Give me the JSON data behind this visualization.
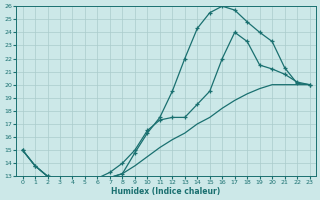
{
  "xlabel": "Humidex (Indice chaleur)",
  "bg_color": "#cce8e8",
  "line_color": "#1a7070",
  "grid_color": "#aacccc",
  "xlim": [
    -0.5,
    23.5
  ],
  "ylim": [
    13,
    26
  ],
  "xticks": [
    0,
    1,
    2,
    3,
    4,
    5,
    6,
    7,
    8,
    9,
    10,
    11,
    12,
    13,
    14,
    15,
    16,
    17,
    18,
    19,
    20,
    21,
    22,
    23
  ],
  "yticks": [
    13,
    14,
    15,
    16,
    17,
    18,
    19,
    20,
    21,
    22,
    23,
    24,
    25,
    26
  ],
  "curve1_x": [
    0,
    1,
    2,
    3,
    4,
    5,
    6,
    7,
    8,
    9,
    10,
    11,
    12,
    13,
    14,
    15,
    16,
    17,
    18,
    19,
    20,
    21,
    22,
    23
  ],
  "curve1_y": [
    15.0,
    13.8,
    13.0,
    12.9,
    12.85,
    12.85,
    12.85,
    12.9,
    13.2,
    14.8,
    16.3,
    17.5,
    19.5,
    22.0,
    24.3,
    25.5,
    26.0,
    25.7,
    24.8,
    24.0,
    23.3,
    21.3,
    20.1,
    20.0
  ],
  "curve2_x": [
    0,
    1,
    2,
    3,
    4,
    5,
    6,
    7,
    8,
    9,
    10,
    11,
    12,
    13,
    14,
    15,
    16,
    17,
    18,
    19,
    20,
    21,
    22,
    23
  ],
  "curve2_y": [
    15.0,
    13.8,
    13.0,
    12.9,
    12.85,
    12.85,
    12.85,
    13.3,
    14.0,
    15.0,
    16.5,
    17.3,
    17.5,
    17.5,
    18.5,
    19.5,
    22.0,
    24.0,
    23.3,
    21.5,
    21.2,
    20.8,
    20.2,
    20.0
  ],
  "curve3_x": [
    0,
    1,
    2,
    3,
    4,
    5,
    6,
    7,
    8,
    9,
    10,
    11,
    12,
    13,
    14,
    15,
    16,
    17,
    18,
    19,
    20,
    21,
    22,
    23
  ],
  "curve3_y": [
    15.0,
    13.8,
    13.0,
    12.9,
    12.85,
    12.85,
    12.85,
    12.9,
    13.2,
    13.8,
    14.5,
    15.2,
    15.8,
    16.3,
    17.0,
    17.5,
    18.2,
    18.8,
    19.3,
    19.7,
    20.0,
    20.0,
    20.0,
    20.0
  ]
}
